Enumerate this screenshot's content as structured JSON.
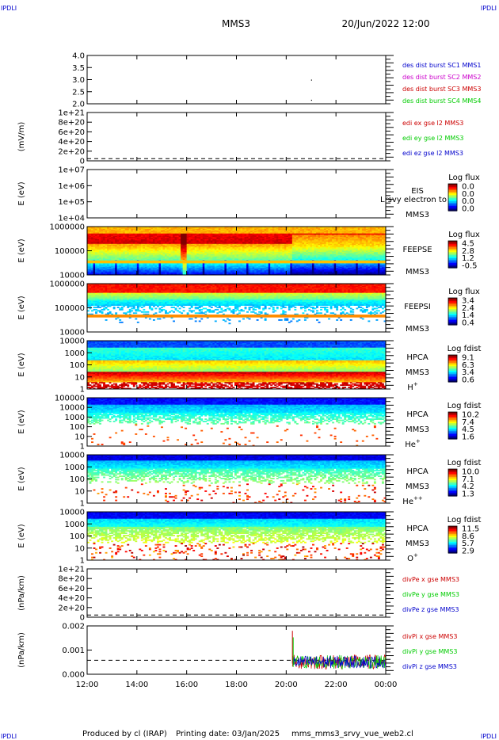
{
  "header": {
    "corner_left_top": "IPDLI",
    "corner_right_top": "IPDLI",
    "corner_left_bottom": "IPDLI",
    "corner_right_bottom": "IPDLI",
    "title": "MMS3",
    "datetime": "20/Jun/2022 12:00"
  },
  "footer": {
    "produced": "Produced by cl (IRAP)",
    "printing": "Printing date: 03/Jan/2025",
    "file": "mms_mms3_srvy_vue_web2.cl"
  },
  "colors": {
    "mms1": "#0000cc",
    "mms2": "#cc00cc",
    "mms3": "#cc0000",
    "mms4": "#00cc00",
    "x": "#cc0000",
    "y": "#00cc00",
    "z": "#0000cc"
  },
  "chart_data": {
    "type": "time-series-stack",
    "x_axis": {
      "ticks": [
        "12:00",
        "14:00",
        "16:00",
        "18:00",
        "20:00",
        "22:00",
        "00:00"
      ],
      "hours": [
        12,
        14,
        16,
        18,
        20,
        22,
        24
      ],
      "range": [
        12,
        24
      ]
    },
    "panels": [
      {
        "id": "eis",
        "kind": "line",
        "ylabel": "",
        "yticks": [
          "4.0",
          "3.5",
          "3.0",
          "2.5",
          "2.0"
        ],
        "ytick_values": [
          4.0,
          3.5,
          3.0,
          2.5,
          2.0
        ],
        "ylim": [
          1.8,
          4.2
        ],
        "legend": [
          {
            "text": "des dist burst SC1 MMS1",
            "color": "#0000cc"
          },
          {
            "text": "des dist burst SC2 MMS2",
            "color": "#cc00cc"
          },
          {
            "text": "des dist burst SC3 MMS3",
            "color": "#cc0000"
          },
          {
            "text": "des dist burst SC4 MMS4",
            "color": "#00cc00"
          }
        ],
        "points": [
          [
            21.0,
            3.0
          ],
          [
            21.0,
            2.0
          ]
        ]
      },
      {
        "id": "edi",
        "kind": "line",
        "ylabel": "(mV/m)",
        "yticks": [
          "1e+21",
          "8e+20",
          "6e+20",
          "4e+20",
          "2e+20",
          "0"
        ],
        "ytick_values": [
          1e+21,
          8e+20,
          6e+20,
          4e+20,
          2e+20,
          0
        ],
        "ylim": [
          -5e+19,
          1.05e+21
        ],
        "zero_line": true,
        "legend": [
          {
            "text": "edi ex gse l2 MMS3",
            "color": "#cc0000"
          },
          {
            "text": "edi ey gse l2 MMS3",
            "color": "#00cc00"
          },
          {
            "text": "edi ez gse l2 MMS3",
            "color": "#0000cc"
          }
        ]
      },
      {
        "id": "eis_flux",
        "kind": "spectrogram",
        "ylabel": "E (eV)",
        "yticks": [
          "1e+07",
          "1e+06",
          "1e+05",
          "1e+04"
        ],
        "log_range": [
          4,
          7
        ],
        "right_label": [
          "EIS",
          "MMS3"
        ],
        "overlay": "Lrsvy electron to",
        "colorbar": {
          "title": "Log flux",
          "values": [
            "0.0",
            "0.0",
            "0.0",
            "0.0"
          ]
        },
        "empty": true
      },
      {
        "id": "feepse",
        "kind": "spectrogram",
        "ylabel": "E (eV)",
        "yticks": [
          "1000000",
          "100000",
          "10000"
        ],
        "log_range": [
          4,
          6
        ],
        "right_label": [
          "FEEPSE",
          "MMS3"
        ],
        "colorbar": {
          "title": "Log flux",
          "values": [
            "4.5",
            "2.8",
            "1.2",
            "-0.5"
          ]
        },
        "profile": "feepse"
      },
      {
        "id": "feepsi",
        "kind": "spectrogram",
        "ylabel": "E (eV)",
        "yticks": [
          "1000000",
          "100000",
          "10000"
        ],
        "log_range": [
          4,
          6
        ],
        "right_label": [
          "FEEPSI",
          "MMS3"
        ],
        "colorbar": {
          "title": "Log flux",
          "values": [
            "3.4",
            "2.4",
            "1.4",
            "0.4"
          ]
        },
        "profile": "feepsi"
      },
      {
        "id": "hpca_h",
        "kind": "spectrogram",
        "ylabel": "E (eV)",
        "yticks": [
          "10000",
          "1000",
          "100",
          "10",
          "1"
        ],
        "log_range": [
          0,
          4
        ],
        "right_label": [
          "HPCA",
          "MMS3"
        ],
        "species": "H",
        "species_sup": "+",
        "colorbar": {
          "title": "Log fdist",
          "values": [
            "9.1",
            "6.3",
            "3.4",
            "0.6"
          ]
        },
        "profile": "hpca_h"
      },
      {
        "id": "hpca_he",
        "kind": "spectrogram",
        "ylabel": "E (eV)",
        "yticks": [
          "100000",
          "10000",
          "1000",
          "100",
          "10",
          "1"
        ],
        "log_range": [
          0,
          5
        ],
        "right_label": [
          "HPCA",
          "MMS3"
        ],
        "species": "He",
        "species_sup": "+",
        "colorbar": {
          "title": "Log fdist",
          "values": [
            "10.2",
            "7.4",
            "4.5",
            "1.6"
          ]
        },
        "profile": "hpca_he"
      },
      {
        "id": "hpca_hepp",
        "kind": "spectrogram",
        "ylabel": "E (eV)",
        "yticks": [
          "10000",
          "1000",
          "100",
          "10",
          "1"
        ],
        "log_range": [
          0,
          4
        ],
        "right_label": [
          "HPCA",
          "MMS3"
        ],
        "species": "He",
        "species_sup": "++",
        "colorbar": {
          "title": "Log fdist",
          "values": [
            "10.0",
            "7.1",
            "4.2",
            "1.3"
          ]
        },
        "profile": "hpca_hepp"
      },
      {
        "id": "hpca_o",
        "kind": "spectrogram",
        "ylabel": "E (eV)",
        "yticks": [
          "10000",
          "1000",
          "100",
          "10",
          "1"
        ],
        "log_range": [
          0,
          4
        ],
        "right_label": [
          "HPCA",
          "MMS3"
        ],
        "species": "O",
        "species_sup": "+",
        "colorbar": {
          "title": "Log fdist",
          "values": [
            "11.5",
            "8.6",
            "5.7",
            "2.9"
          ]
        },
        "profile": "hpca_o"
      },
      {
        "id": "divpe",
        "kind": "line",
        "ylabel": "(nPa/km)",
        "yticks": [
          "1e+21",
          "8e+20",
          "6e+20",
          "4e+20",
          "2e+20",
          "0"
        ],
        "ytick_values": [
          1e+21,
          8e+20,
          6e+20,
          4e+20,
          2e+20,
          0
        ],
        "ylim": [
          -5e+19,
          1.05e+21
        ],
        "zero_line": true,
        "legend": [
          {
            "text": "divPe x gse MMS3",
            "color": "#cc0000"
          },
          {
            "text": "divPe y gse MMS3",
            "color": "#00cc00"
          },
          {
            "text": "divPe z gse MMS3",
            "color": "#0000cc"
          }
        ]
      },
      {
        "id": "divpi",
        "kind": "line",
        "ylabel": "(nPa/km)",
        "yticks": [
          "0.002",
          "0.001",
          "0.000"
        ],
        "ytick_values": [
          0.002,
          0.001,
          0.0
        ],
        "ylim": [
          -0.00085,
          0.0021
        ],
        "zero_line": true,
        "legend": [
          {
            "text": "divPi x gse MMS3",
            "color": "#cc0000"
          },
          {
            "text": "divPi y gse MMS3",
            "color": "#00cc00"
          },
          {
            "text": "divPi z gse MMS3",
            "color": "#0000cc"
          }
        ],
        "noise": {
          "start": 20.25,
          "end": 24,
          "spike": [
            20.25,
            0.0018
          ]
        }
      }
    ]
  }
}
